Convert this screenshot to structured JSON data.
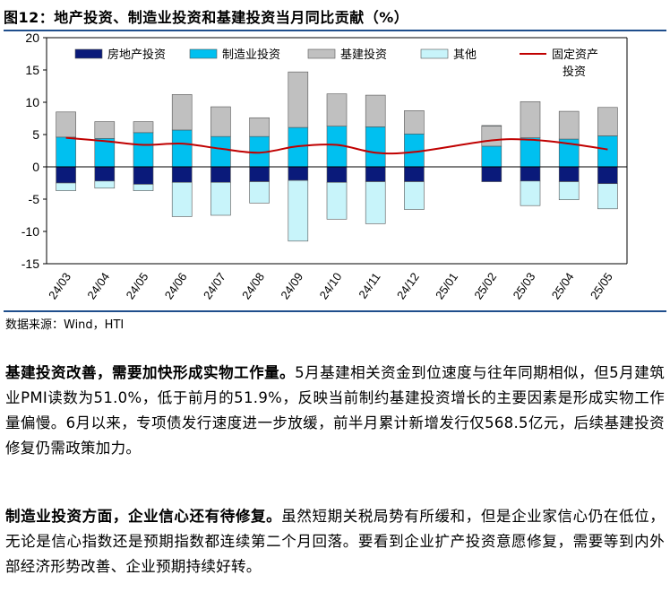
{
  "figure": {
    "title": "图12：地产投资、制造业投资和基建投资当月同比贡献（%）",
    "source": "数据来源：Wind，HTI"
  },
  "paragraphs": [
    {
      "lead": "基建投资改善，需要加快形成实物工作量。",
      "body": "5月基建相关资金到位速度与往年同期相似，但5月建筑业PMI读数为51.0%，低于前月的51.9%，反映当前制约基建投资增长的主要因素是形成实物工作量偏慢。6月以来，专项债发行速度进一步放缓，前半月累计新增发行仅568.5亿元，后续基建投资修复仍需政策加力。"
    },
    {
      "lead": "制造业投资方面，企业信心还有待修复。",
      "body": "虽然短期关税局势有所缓和，但是企业家信心仍在低位，无论是信心指数还是预期指数都连续第二个月回落。要看到企业扩产投资意愿修复，需要等到内外部经济形势改善、企业预期持续好转。"
    }
  ],
  "chart_data": {
    "type": "bar",
    "stacked": true,
    "title": "地产投资、制造业投资和基建投资当月同比贡献（%）",
    "xlabel": "",
    "ylabel": "",
    "ylim": [
      -15,
      20
    ],
    "yticks": [
      -15,
      -10,
      -5,
      0,
      5,
      10,
      15,
      20
    ],
    "categories": [
      "24/03",
      "24/04",
      "24/05",
      "24/06",
      "24/07",
      "24/08",
      "24/09",
      "24/10",
      "24/11",
      "24/12",
      "25/01",
      "25/02",
      "25/03",
      "25/04",
      "25/05"
    ],
    "series": [
      {
        "name": "房地产投资",
        "type": "bar",
        "color": "#0a1a7a",
        "values": [
          -2.5,
          -2.2,
          -2.7,
          -2.4,
          -2.4,
          -2.3,
          -2.1,
          -2.4,
          -2.3,
          -2.3,
          null,
          -2.3,
          -2.2,
          -2.3,
          -2.6
        ]
      },
      {
        "name": "制造业投资",
        "type": "bar",
        "color": "#00c0f0",
        "values": [
          4.6,
          4.4,
          5.3,
          5.7,
          4.7,
          4.7,
          6.1,
          6.3,
          6.2,
          5.1,
          null,
          3.2,
          4.5,
          4.3,
          4.8
        ]
      },
      {
        "name": "基建投资",
        "type": "bar",
        "color": "#c0c0c0",
        "values": [
          3.9,
          2.6,
          1.7,
          5.5,
          4.6,
          2.9,
          8.6,
          5.0,
          4.9,
          3.6,
          null,
          3.1,
          5.6,
          4.3,
          4.4
        ]
      },
      {
        "name": "其他",
        "type": "bar",
        "color": "#c8f4fa",
        "values": [
          -1.2,
          -1.1,
          -1.0,
          -5.3,
          -5.1,
          -3.3,
          -9.4,
          -5.7,
          -6.5,
          -4.3,
          null,
          0.1,
          -3.8,
          -2.8,
          -3.9
        ]
      },
      {
        "name": "固定资产投资",
        "type": "line",
        "color": "#c00000",
        "values": [
          4.5,
          4.0,
          3.4,
          3.6,
          2.8,
          2.2,
          3.2,
          3.4,
          2.2,
          2.3,
          null,
          4.1,
          4.2,
          3.6,
          2.7
        ]
      }
    ],
    "legend": [
      {
        "label": "房地产投资",
        "kind": "bar",
        "color": "#0a1a7a"
      },
      {
        "label": "制造业投资",
        "kind": "bar",
        "color": "#00c0f0"
      },
      {
        "label": "基建投资",
        "kind": "bar",
        "color": "#c0c0c0"
      },
      {
        "label": "其他",
        "kind": "bar",
        "color": "#c8f4fa"
      },
      {
        "label": "固定资产",
        "label2": "投资",
        "kind": "line",
        "color": "#c00000"
      }
    ],
    "legend_position": "top"
  }
}
